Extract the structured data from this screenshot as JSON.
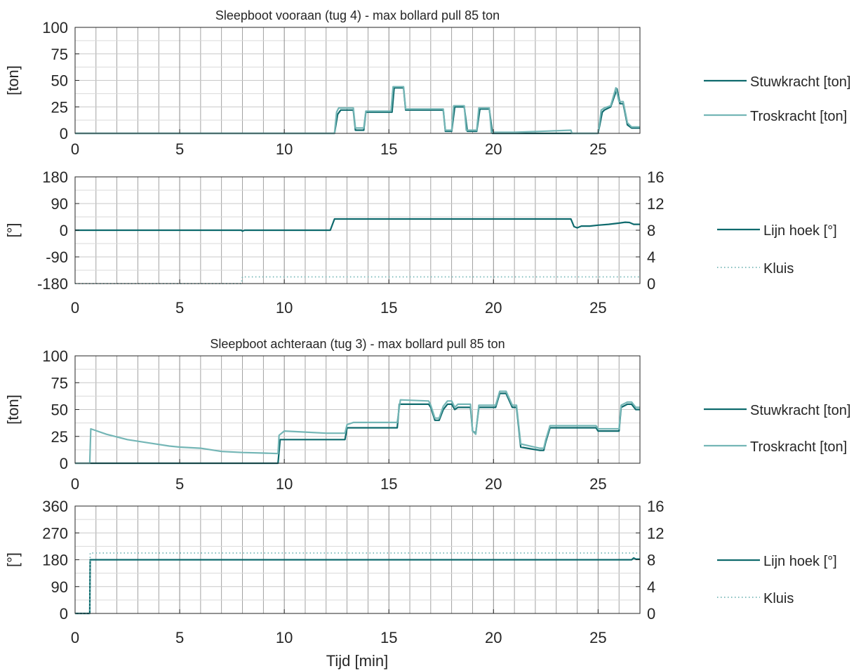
{
  "figure": {
    "xlabel": "Tijd [min]",
    "colors": {
      "stuwkracht": "#0e6a6d",
      "troskracht": "#74b6b6",
      "grid_major": "#8a8a8a",
      "grid_minor": "#d9d9d9",
      "axes": "#262626"
    }
  },
  "chart_data": [
    {
      "type": "line",
      "title": "Sleepboot vooraan (tug 4) - max bollard pull 85 ton",
      "ylabel": "[ton]",
      "xlabel": "",
      "xlim": [
        0,
        27
      ],
      "ylim": [
        0,
        100
      ],
      "xticks": [
        0,
        5,
        10,
        15,
        20,
        25
      ],
      "yticks": [
        0,
        25,
        50,
        75,
        100
      ],
      "grid": true,
      "legend": "right-outside",
      "series": [
        {
          "name": "Stuwkracht [ton]",
          "style": "solid",
          "x": [
            0,
            12.4,
            12.55,
            12.7,
            13.3,
            13.4,
            13.8,
            13.9,
            15.15,
            15.25,
            15.7,
            15.8,
            17.6,
            17.7,
            18.0,
            18.15,
            18.6,
            18.75,
            19.2,
            19.35,
            19.8,
            19.95,
            23.7,
            25.0,
            25.2,
            25.3,
            25.6,
            25.9,
            26.05,
            26.2,
            26.4,
            26.6,
            27
          ],
          "y": [
            0,
            0,
            18,
            22,
            22,
            3,
            3,
            20,
            20,
            43,
            43,
            22,
            22,
            2,
            2,
            25,
            25,
            2,
            2,
            23,
            23,
            0,
            0,
            0,
            20,
            22,
            25,
            42,
            28,
            28,
            8,
            5,
            5
          ]
        },
        {
          "name": "Troskracht [ton]",
          "style": "solid",
          "x": [
            0,
            12.4,
            12.5,
            12.6,
            13.3,
            13.4,
            13.8,
            13.9,
            15.1,
            15.2,
            15.7,
            15.8,
            17.6,
            17.7,
            18.0,
            18.1,
            18.6,
            18.7,
            19.2,
            19.3,
            19.8,
            19.9,
            21.0,
            23.7,
            23.75,
            25.0,
            25.15,
            25.3,
            25.6,
            25.85,
            26.0,
            26.2,
            26.4,
            26.6,
            27
          ],
          "y": [
            0,
            0,
            20,
            24,
            24,
            5,
            5,
            21,
            21,
            44,
            44,
            23,
            23,
            3,
            3,
            26,
            26,
            3,
            3,
            24,
            24,
            1,
            1,
            3,
            0,
            0,
            22,
            24,
            26,
            43,
            30,
            30,
            10,
            6,
            6
          ]
        }
      ]
    },
    {
      "type": "line",
      "title": "",
      "ylabel": "[°]",
      "xlim": [
        0,
        27
      ],
      "ylim": [
        -180,
        180
      ],
      "y2lim": [
        0,
        16
      ],
      "xticks": [
        0,
        5,
        10,
        15,
        20,
        25
      ],
      "yticks": [
        -180,
        -90,
        0,
        90,
        180
      ],
      "y2ticks": [
        0,
        4,
        8,
        12,
        16
      ],
      "grid": true,
      "legend": "right-outside",
      "series": [
        {
          "name": "Lijn hoek [°]",
          "axis": "left",
          "style": "solid",
          "x": [
            0,
            7.95,
            8.0,
            8.1,
            12.2,
            12.4,
            23.7,
            23.85,
            24.0,
            24.2,
            24.6,
            25.0,
            25.5,
            26.0,
            26.3,
            26.5,
            26.7,
            27
          ],
          "y": [
            0,
            0,
            -3,
            0,
            0,
            38,
            38,
            12,
            8,
            14,
            14,
            17,
            20,
            24,
            27,
            26,
            20,
            20
          ]
        },
        {
          "name": "Kluis",
          "axis": "right",
          "style": "dotted",
          "x": [
            0,
            7.95,
            8.0,
            27
          ],
          "y": [
            0,
            0,
            1,
            1
          ]
        }
      ]
    },
    {
      "type": "line",
      "title": "Sleepboot achteraan (tug 3) - max bollard pull 85 ton",
      "ylabel": "[ton]",
      "xlim": [
        0,
        27
      ],
      "ylim": [
        0,
        100
      ],
      "xticks": [
        0,
        5,
        10,
        15,
        20,
        25
      ],
      "yticks": [
        0,
        25,
        50,
        75,
        100
      ],
      "grid": true,
      "legend": "right-outside",
      "series": [
        {
          "name": "Stuwkracht [ton]",
          "style": "solid",
          "x": [
            0,
            9.7,
            9.8,
            12.9,
            13.0,
            15.4,
            15.5,
            16.9,
            17.0,
            17.2,
            17.4,
            17.6,
            17.8,
            18.0,
            18.15,
            18.3,
            18.9,
            19.0,
            19.15,
            19.3,
            20.1,
            20.3,
            20.6,
            20.9,
            21.1,
            21.3,
            22.2,
            22.4,
            22.5,
            22.7,
            24.9,
            25.0,
            26.0,
            26.1,
            26.4,
            26.6,
            26.8,
            27
          ],
          "y": [
            0,
            0,
            22,
            22,
            33,
            33,
            55,
            55,
            52,
            40,
            40,
            50,
            55,
            55,
            50,
            52,
            52,
            30,
            28,
            52,
            52,
            65,
            65,
            52,
            52,
            15,
            12,
            12,
            20,
            33,
            33,
            30,
            30,
            52,
            55,
            55,
            50,
            50
          ]
        },
        {
          "name": "Troskracht [ton]",
          "style": "solid",
          "x": [
            0,
            0.7,
            0.75,
            1.5,
            2.5,
            3.5,
            4.5,
            5.0,
            6.0,
            7.0,
            8.0,
            9.0,
            9.7,
            9.75,
            10.0,
            11.0,
            12.0,
            12.9,
            13.0,
            13.3,
            15.0,
            15.4,
            15.55,
            16.9,
            17.0,
            17.2,
            17.4,
            17.6,
            17.8,
            18.0,
            18.15,
            18.3,
            18.9,
            19.0,
            19.15,
            19.3,
            20.1,
            20.3,
            20.6,
            20.9,
            21.1,
            21.3,
            22.2,
            22.4,
            22.5,
            22.7,
            24.9,
            25.0,
            26.0,
            26.1,
            26.4,
            26.6,
            26.8,
            27
          ],
          "y": [
            0,
            0,
            32,
            27,
            22,
            19,
            16,
            15,
            14,
            11,
            10,
            9.5,
            9,
            26,
            30,
            29,
            28,
            28,
            36,
            38,
            38,
            38,
            59,
            58,
            54,
            42,
            42,
            53,
            58,
            58,
            52,
            55,
            55,
            30,
            27,
            54,
            54,
            67,
            67,
            54,
            54,
            18,
            14,
            14,
            22,
            35,
            35,
            32,
            32,
            54,
            57,
            57,
            52,
            52
          ]
        }
      ]
    },
    {
      "type": "line",
      "title": "",
      "ylabel": "[°]",
      "xlim": [
        0,
        27
      ],
      "ylim": [
        0,
        360
      ],
      "y2lim": [
        0,
        16
      ],
      "xticks": [
        0,
        5,
        10,
        15,
        20,
        25
      ],
      "yticks": [
        0,
        90,
        180,
        270,
        360
      ],
      "y2ticks": [
        0,
        4,
        8,
        12,
        16
      ],
      "grid": true,
      "legend": "right-outside",
      "series": [
        {
          "name": "Lijn hoek [°]",
          "axis": "left",
          "style": "solid",
          "x": [
            0,
            0.7,
            0.72,
            26.6,
            26.7,
            26.8,
            27
          ],
          "y": [
            0,
            0,
            180,
            180,
            186,
            182,
            182
          ]
        },
        {
          "name": "Kluis",
          "axis": "right",
          "style": "dotted",
          "x": [
            0,
            0.7,
            0.72,
            27
          ],
          "y": [
            0,
            0,
            9,
            9
          ]
        }
      ]
    }
  ]
}
